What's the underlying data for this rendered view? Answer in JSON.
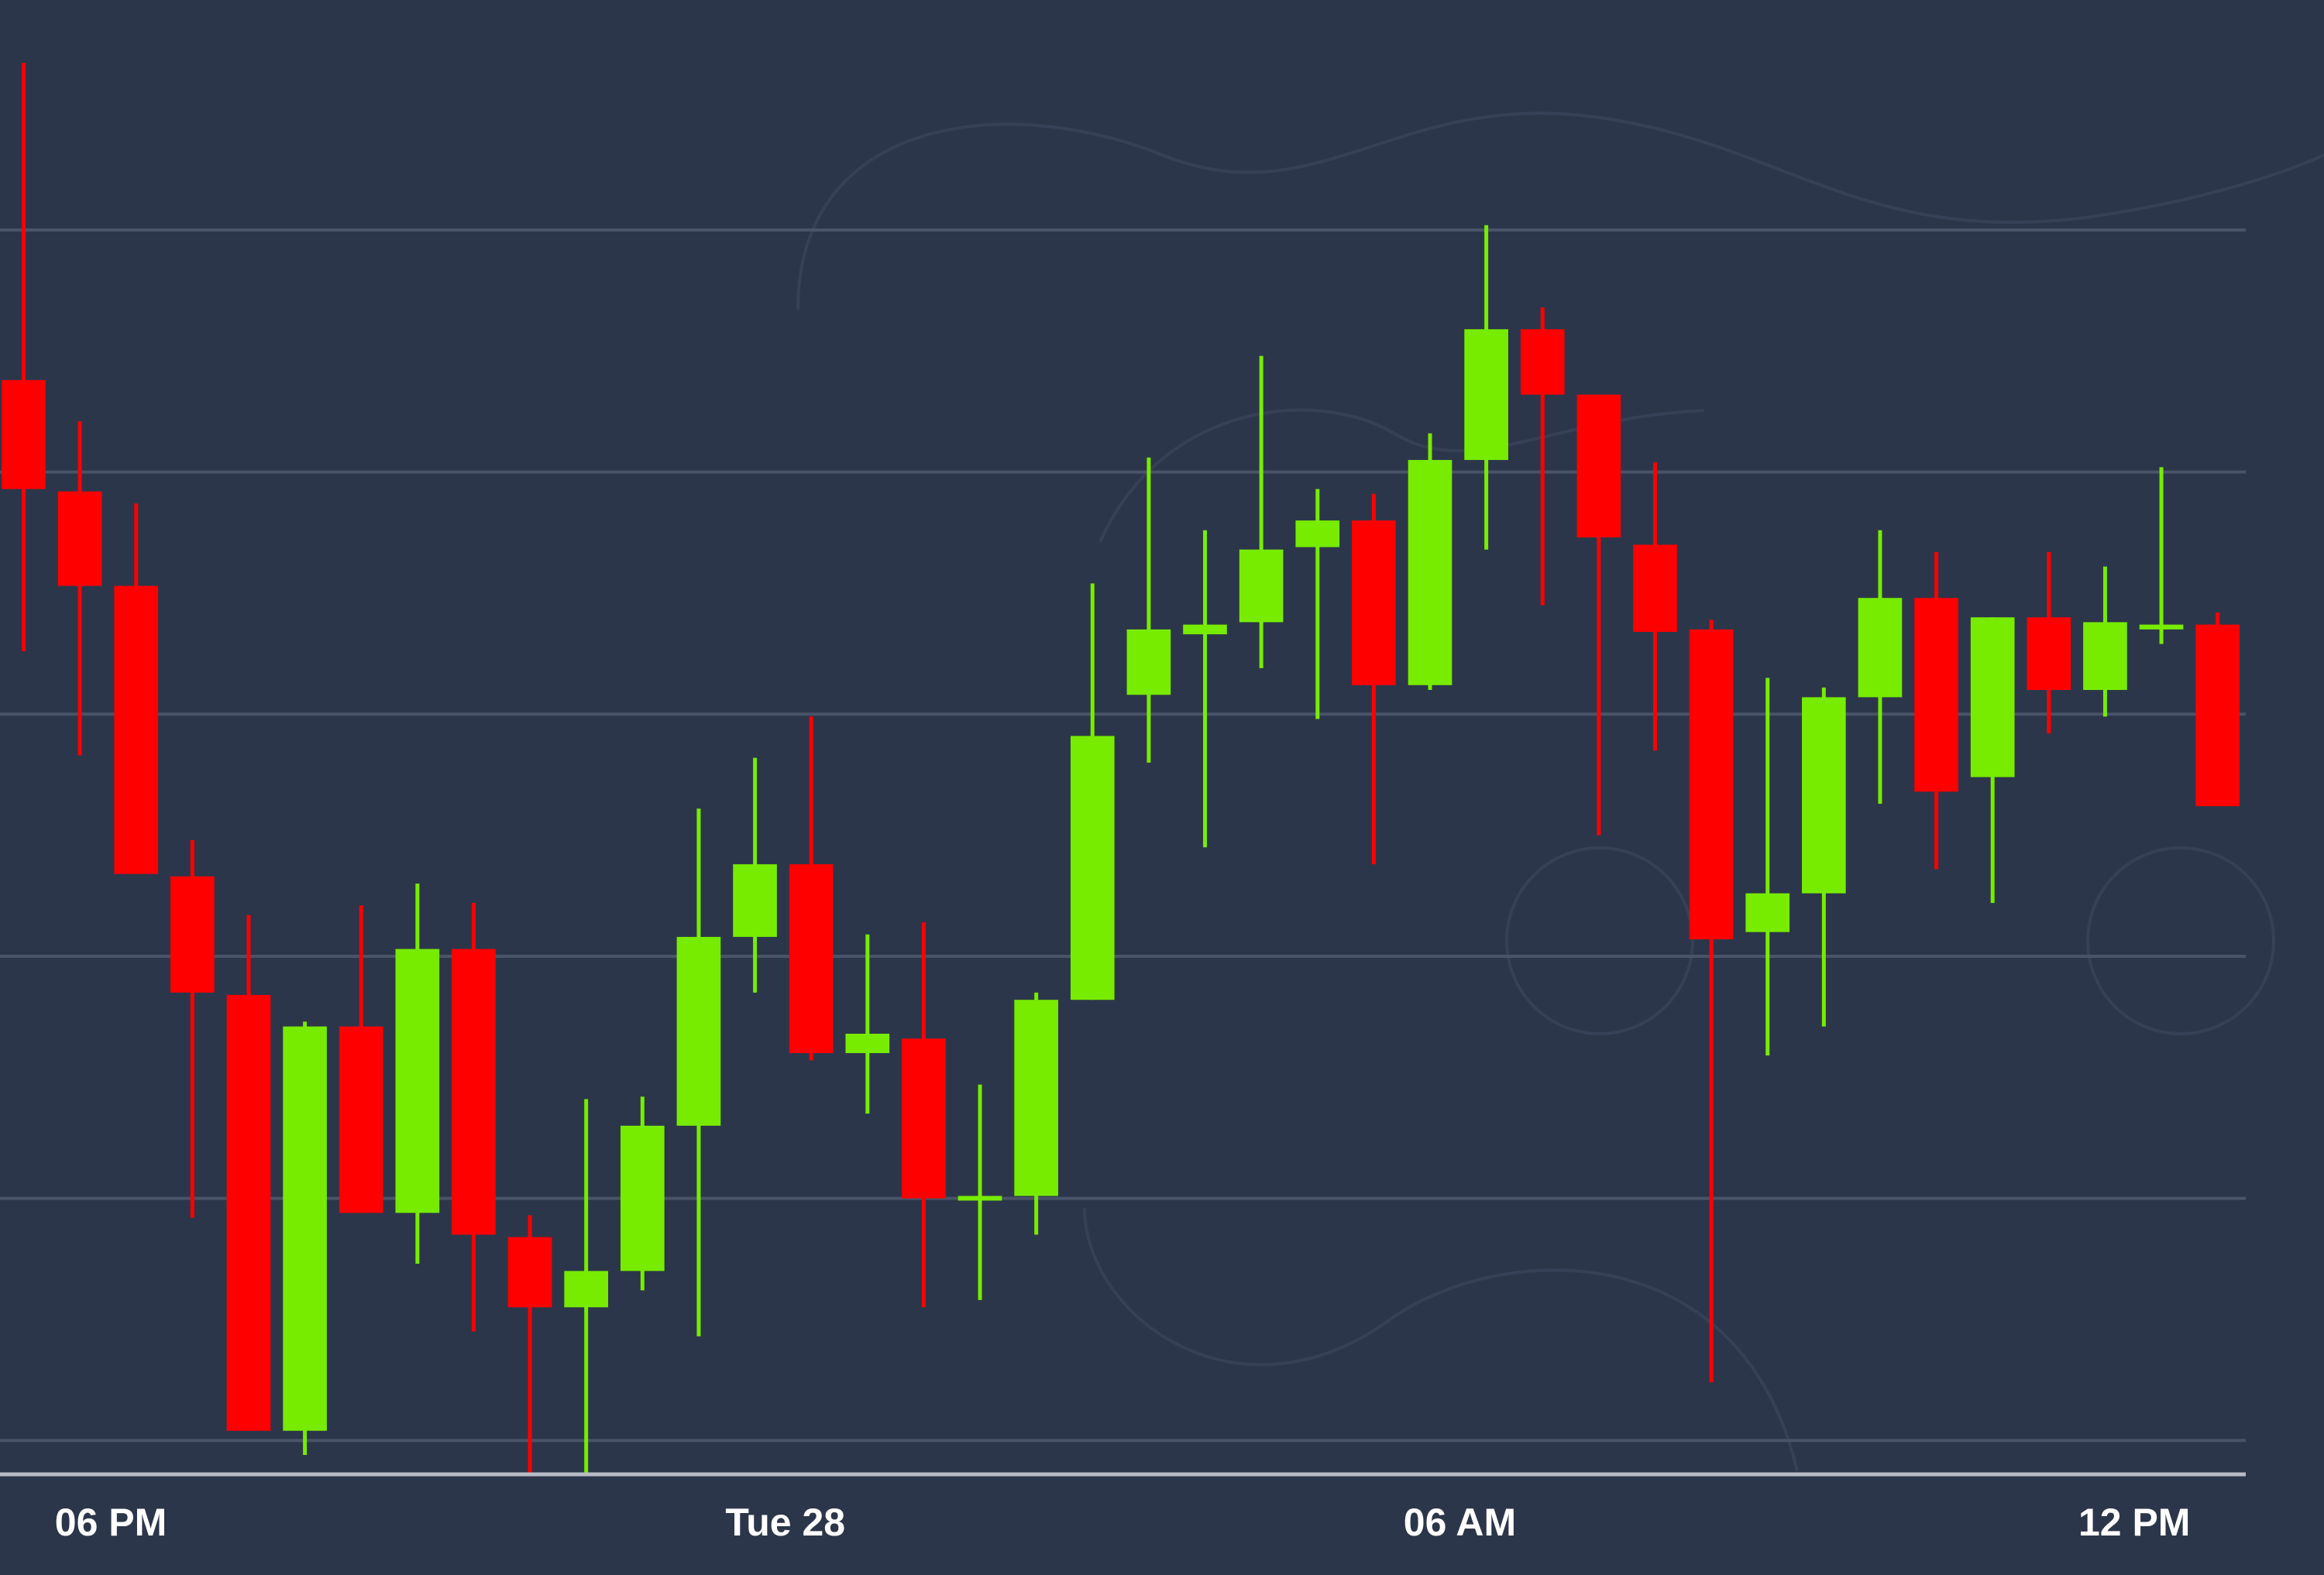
{
  "chart_data": {
    "type": "candlestick",
    "categories": [
      null,
      null,
      null,
      null,
      null,
      null,
      null,
      null,
      null,
      null,
      null,
      null,
      null,
      null,
      null,
      null,
      null,
      null,
      null,
      null,
      null,
      null,
      null,
      null,
      null,
      null,
      null,
      null,
      null,
      null,
      null,
      null,
      null,
      null,
      null,
      null,
      null,
      null,
      null,
      null
    ],
    "open": [
      4.38,
      3.92,
      3.53,
      2.33,
      1.84,
      0.04,
      1.71,
      0.94,
      2.03,
      0.84,
      0.55,
      0.7,
      1.3,
      2.08,
      2.38,
      1.6,
      1.66,
      1.0,
      1.01,
      1.82,
      3.08,
      3.33,
      3.38,
      3.69,
      3.8,
      3.12,
      4.05,
      4.59,
      4.32,
      3.7,
      3.35,
      2.1,
      2.26,
      3.07,
      3.48,
      2.74,
      3.4,
      3.1,
      3.35,
      3.37
    ],
    "high": [
      5.69,
      4.21,
      3.87,
      2.48,
      2.17,
      1.73,
      2.21,
      2.3,
      2.22,
      0.93,
      1.41,
      1.42,
      2.61,
      2.82,
      2.99,
      2.09,
      2.14,
      1.47,
      1.85,
      3.54,
      4.06,
      3.76,
      4.48,
      3.93,
      3.91,
      4.16,
      5.02,
      4.68,
      4.32,
      4.04,
      3.39,
      3.15,
      3.11,
      3.76,
      3.67,
      3.4,
      3.67,
      3.61,
      4.02,
      3.42
    ],
    "low": [
      3.26,
      2.83,
      2.34,
      0.92,
      0.04,
      -0.06,
      0.94,
      0.73,
      0.45,
      -0.14,
      -0.14,
      0.62,
      0.43,
      1.85,
      1.57,
      1.35,
      0.55,
      0.58,
      0.85,
      1.82,
      2.8,
      2.45,
      3.19,
      2.98,
      2.38,
      3.1,
      3.68,
      3.45,
      2.5,
      2.85,
      0.24,
      1.59,
      1.71,
      2.63,
      2.36,
      2.22,
      2.92,
      2.99,
      3.29,
      2.62
    ],
    "close": [
      3.93,
      3.53,
      2.34,
      1.85,
      0.04,
      1.71,
      0.94,
      2.03,
      0.85,
      0.55,
      0.7,
      1.3,
      2.08,
      2.38,
      1.6,
      1.68,
      1.0,
      1.01,
      1.82,
      2.91,
      3.35,
      3.37,
      3.68,
      3.8,
      3.12,
      4.05,
      4.59,
      4.32,
      3.73,
      3.34,
      2.07,
      2.26,
      3.07,
      3.48,
      2.68,
      3.4,
      3.1,
      3.38,
      3.37,
      2.62
    ],
    "up_color": "#77ec00",
    "down_color": "#ff0000",
    "xlim": [
      -0.42,
      39.5
    ],
    "xticks": [
      {
        "value": 1.55,
        "label": "06 PM"
      },
      {
        "value": 13.54,
        "label": "Tue 28"
      },
      {
        "value": 25.53,
        "label": "06 AM"
      },
      {
        "value": 37.52,
        "label": "12 PM"
      }
    ],
    "ylim": [
      -0.14,
      5.95
    ],
    "yticks": [
      0,
      1,
      2,
      3,
      4,
      5
    ],
    "grid": true
  }
}
